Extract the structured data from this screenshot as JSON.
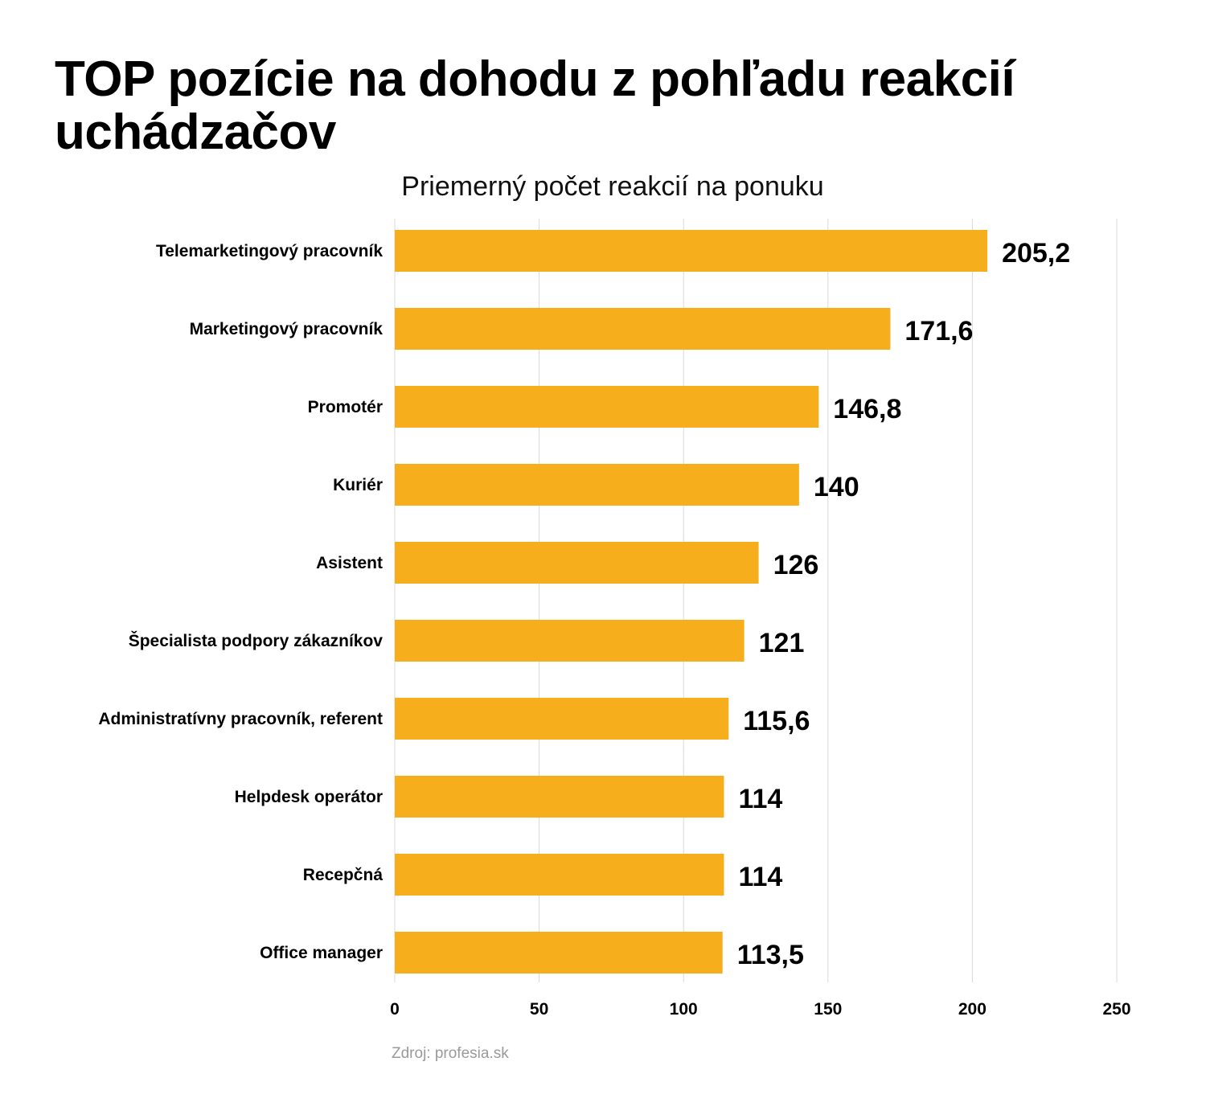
{
  "chart_data": {
    "type": "bar",
    "orientation": "horizontal",
    "title": "TOP pozície na dohodu z pohľadu reakcií uchádzačov",
    "subtitle": "Priemerný počet reakcií na ponuku",
    "categories": [
      "Telemarketingový pracovník",
      "Marketingový pracovník",
      "Promotér",
      "Kuriér",
      "Asistent",
      "Špecialista podpory zákazníkov",
      "Administratívny pracovník, referent",
      "Helpdesk operátor",
      "Recepčná",
      "Office manager"
    ],
    "values": [
      205.2,
      171.6,
      146.8,
      140,
      126,
      121,
      115.6,
      114,
      114,
      113.5
    ],
    "value_labels": [
      "205,2",
      "171,6",
      "146,8",
      "140",
      "126",
      "121",
      "115,6",
      "114",
      "114",
      "113,5"
    ],
    "xlim": [
      0,
      250
    ],
    "xticks": [
      0,
      50,
      100,
      150,
      200,
      250
    ],
    "grid": true,
    "bar_color": "#F7AE1D",
    "grid_color": "#D9D9D9",
    "source": "Zdroj: profesia.sk"
  }
}
